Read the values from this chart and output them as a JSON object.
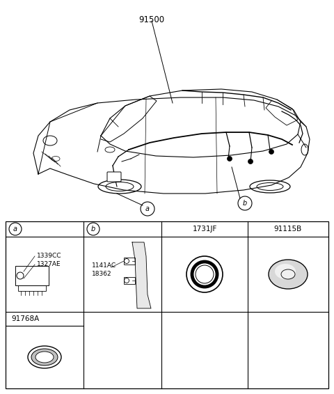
{
  "background_color": "#ffffff",
  "main_label": "91500",
  "cell_a_part1": "1339CC",
  "cell_a_part2": "1327AE",
  "cell_b_part1": "1141AC",
  "cell_b_part2": "18362",
  "cell_c_label": "1731JF",
  "cell_d_label": "91115B",
  "cell_e_label": "91768A",
  "fig_width": 4.8,
  "fig_height": 5.66,
  "dpi": 100
}
